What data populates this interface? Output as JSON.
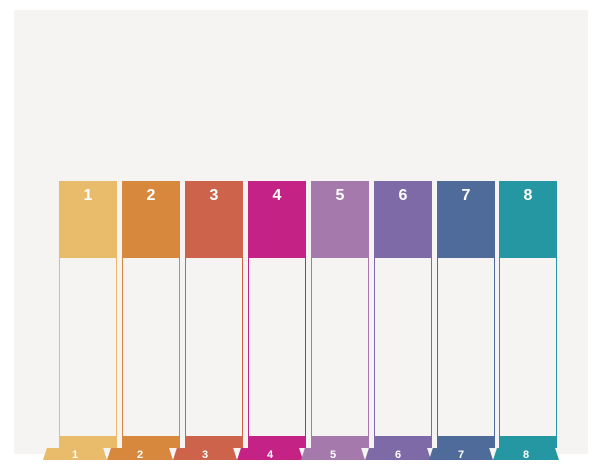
{
  "dividers": [
    {
      "label": "1",
      "color": "#e8bc6a"
    },
    {
      "label": "2",
      "color": "#d8883c"
    },
    {
      "label": "3",
      "color": "#cc634a"
    },
    {
      "label": "4",
      "color": "#c42284"
    },
    {
      "label": "5",
      "color": "#a579ab"
    },
    {
      "label": "6",
      "color": "#7f6aa8"
    },
    {
      "label": "7",
      "color": "#4e6b9a"
    },
    {
      "label": "8",
      "color": "#2597a2"
    }
  ]
}
